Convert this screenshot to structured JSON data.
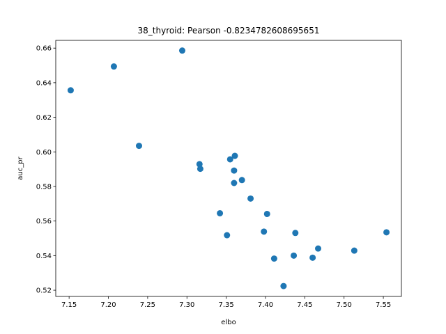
{
  "chart_data": {
    "type": "scatter",
    "title": "38_thyroid: Pearson -0.8234782608695651",
    "xlabel": "elbo",
    "ylabel": "auc_pr",
    "xlim": [
      7.133,
      7.573
    ],
    "ylim": [
      0.5164,
      0.6645
    ],
    "xticks": [
      7.15,
      7.2,
      7.25,
      7.3,
      7.35,
      7.4,
      7.45,
      7.5,
      7.55
    ],
    "xtick_labels": [
      "7.15",
      "7.20",
      "7.25",
      "7.30",
      "7.35",
      "7.40",
      "7.45",
      "7.50",
      "7.55"
    ],
    "yticks": [
      0.52,
      0.54,
      0.56,
      0.58,
      0.6,
      0.62,
      0.64,
      0.66
    ],
    "ytick_labels": [
      "0.52",
      "0.54",
      "0.56",
      "0.58",
      "0.60",
      "0.62",
      "0.64",
      "0.66"
    ],
    "grid": false,
    "marker_color": "#1f77b4",
    "points": [
      {
        "x": 7.152,
        "y": 0.6356
      },
      {
        "x": 7.207,
        "y": 0.6494
      },
      {
        "x": 7.239,
        "y": 0.6035
      },
      {
        "x": 7.294,
        "y": 0.6586
      },
      {
        "x": 7.316,
        "y": 0.5929
      },
      {
        "x": 7.317,
        "y": 0.5902
      },
      {
        "x": 7.342,
        "y": 0.5645
      },
      {
        "x": 7.351,
        "y": 0.5518
      },
      {
        "x": 7.355,
        "y": 0.5957
      },
      {
        "x": 7.36,
        "y": 0.5892
      },
      {
        "x": 7.36,
        "y": 0.582
      },
      {
        "x": 7.361,
        "y": 0.5977
      },
      {
        "x": 7.37,
        "y": 0.5837
      },
      {
        "x": 7.381,
        "y": 0.573
      },
      {
        "x": 7.398,
        "y": 0.5539
      },
      {
        "x": 7.402,
        "y": 0.5641
      },
      {
        "x": 7.411,
        "y": 0.5383
      },
      {
        "x": 7.423,
        "y": 0.5224
      },
      {
        "x": 7.436,
        "y": 0.54
      },
      {
        "x": 7.438,
        "y": 0.5531
      },
      {
        "x": 7.46,
        "y": 0.5388
      },
      {
        "x": 7.467,
        "y": 0.5441
      },
      {
        "x": 7.513,
        "y": 0.5429
      },
      {
        "x": 7.554,
        "y": 0.5535
      }
    ]
  }
}
